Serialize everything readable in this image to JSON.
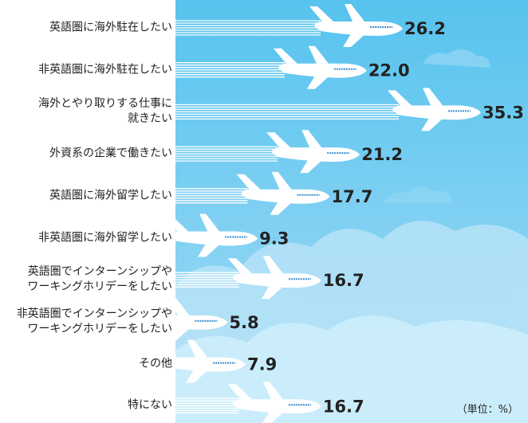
{
  "chart_data": {
    "type": "bar",
    "categories": [
      "英語圏に海外駐在したい",
      "非英語圏に海外駐在したい",
      "海外とやり取りする仕事に\n就きたい",
      "外資系の企業で働きたい",
      "英語圏に海外留学したい",
      "非英語圏に海外留学したい",
      "英語圏でインターンシップや\nワーキングホリデーをしたい",
      "非英語圏でインターンシップや\nワーキングホリデーをしたい",
      "その他",
      "特にない"
    ],
    "values": [
      26.2,
      22.0,
      35.3,
      21.2,
      17.7,
      9.3,
      16.7,
      5.8,
      7.9,
      16.7
    ],
    "value_labels": [
      "26.2",
      "22.0",
      "35.3",
      "21.2",
      "17.7",
      "9.3",
      "16.7",
      "5.8",
      "7.9",
      "16.7"
    ],
    "color": "#ffffff",
    "note": "（単位：%）"
  }
}
